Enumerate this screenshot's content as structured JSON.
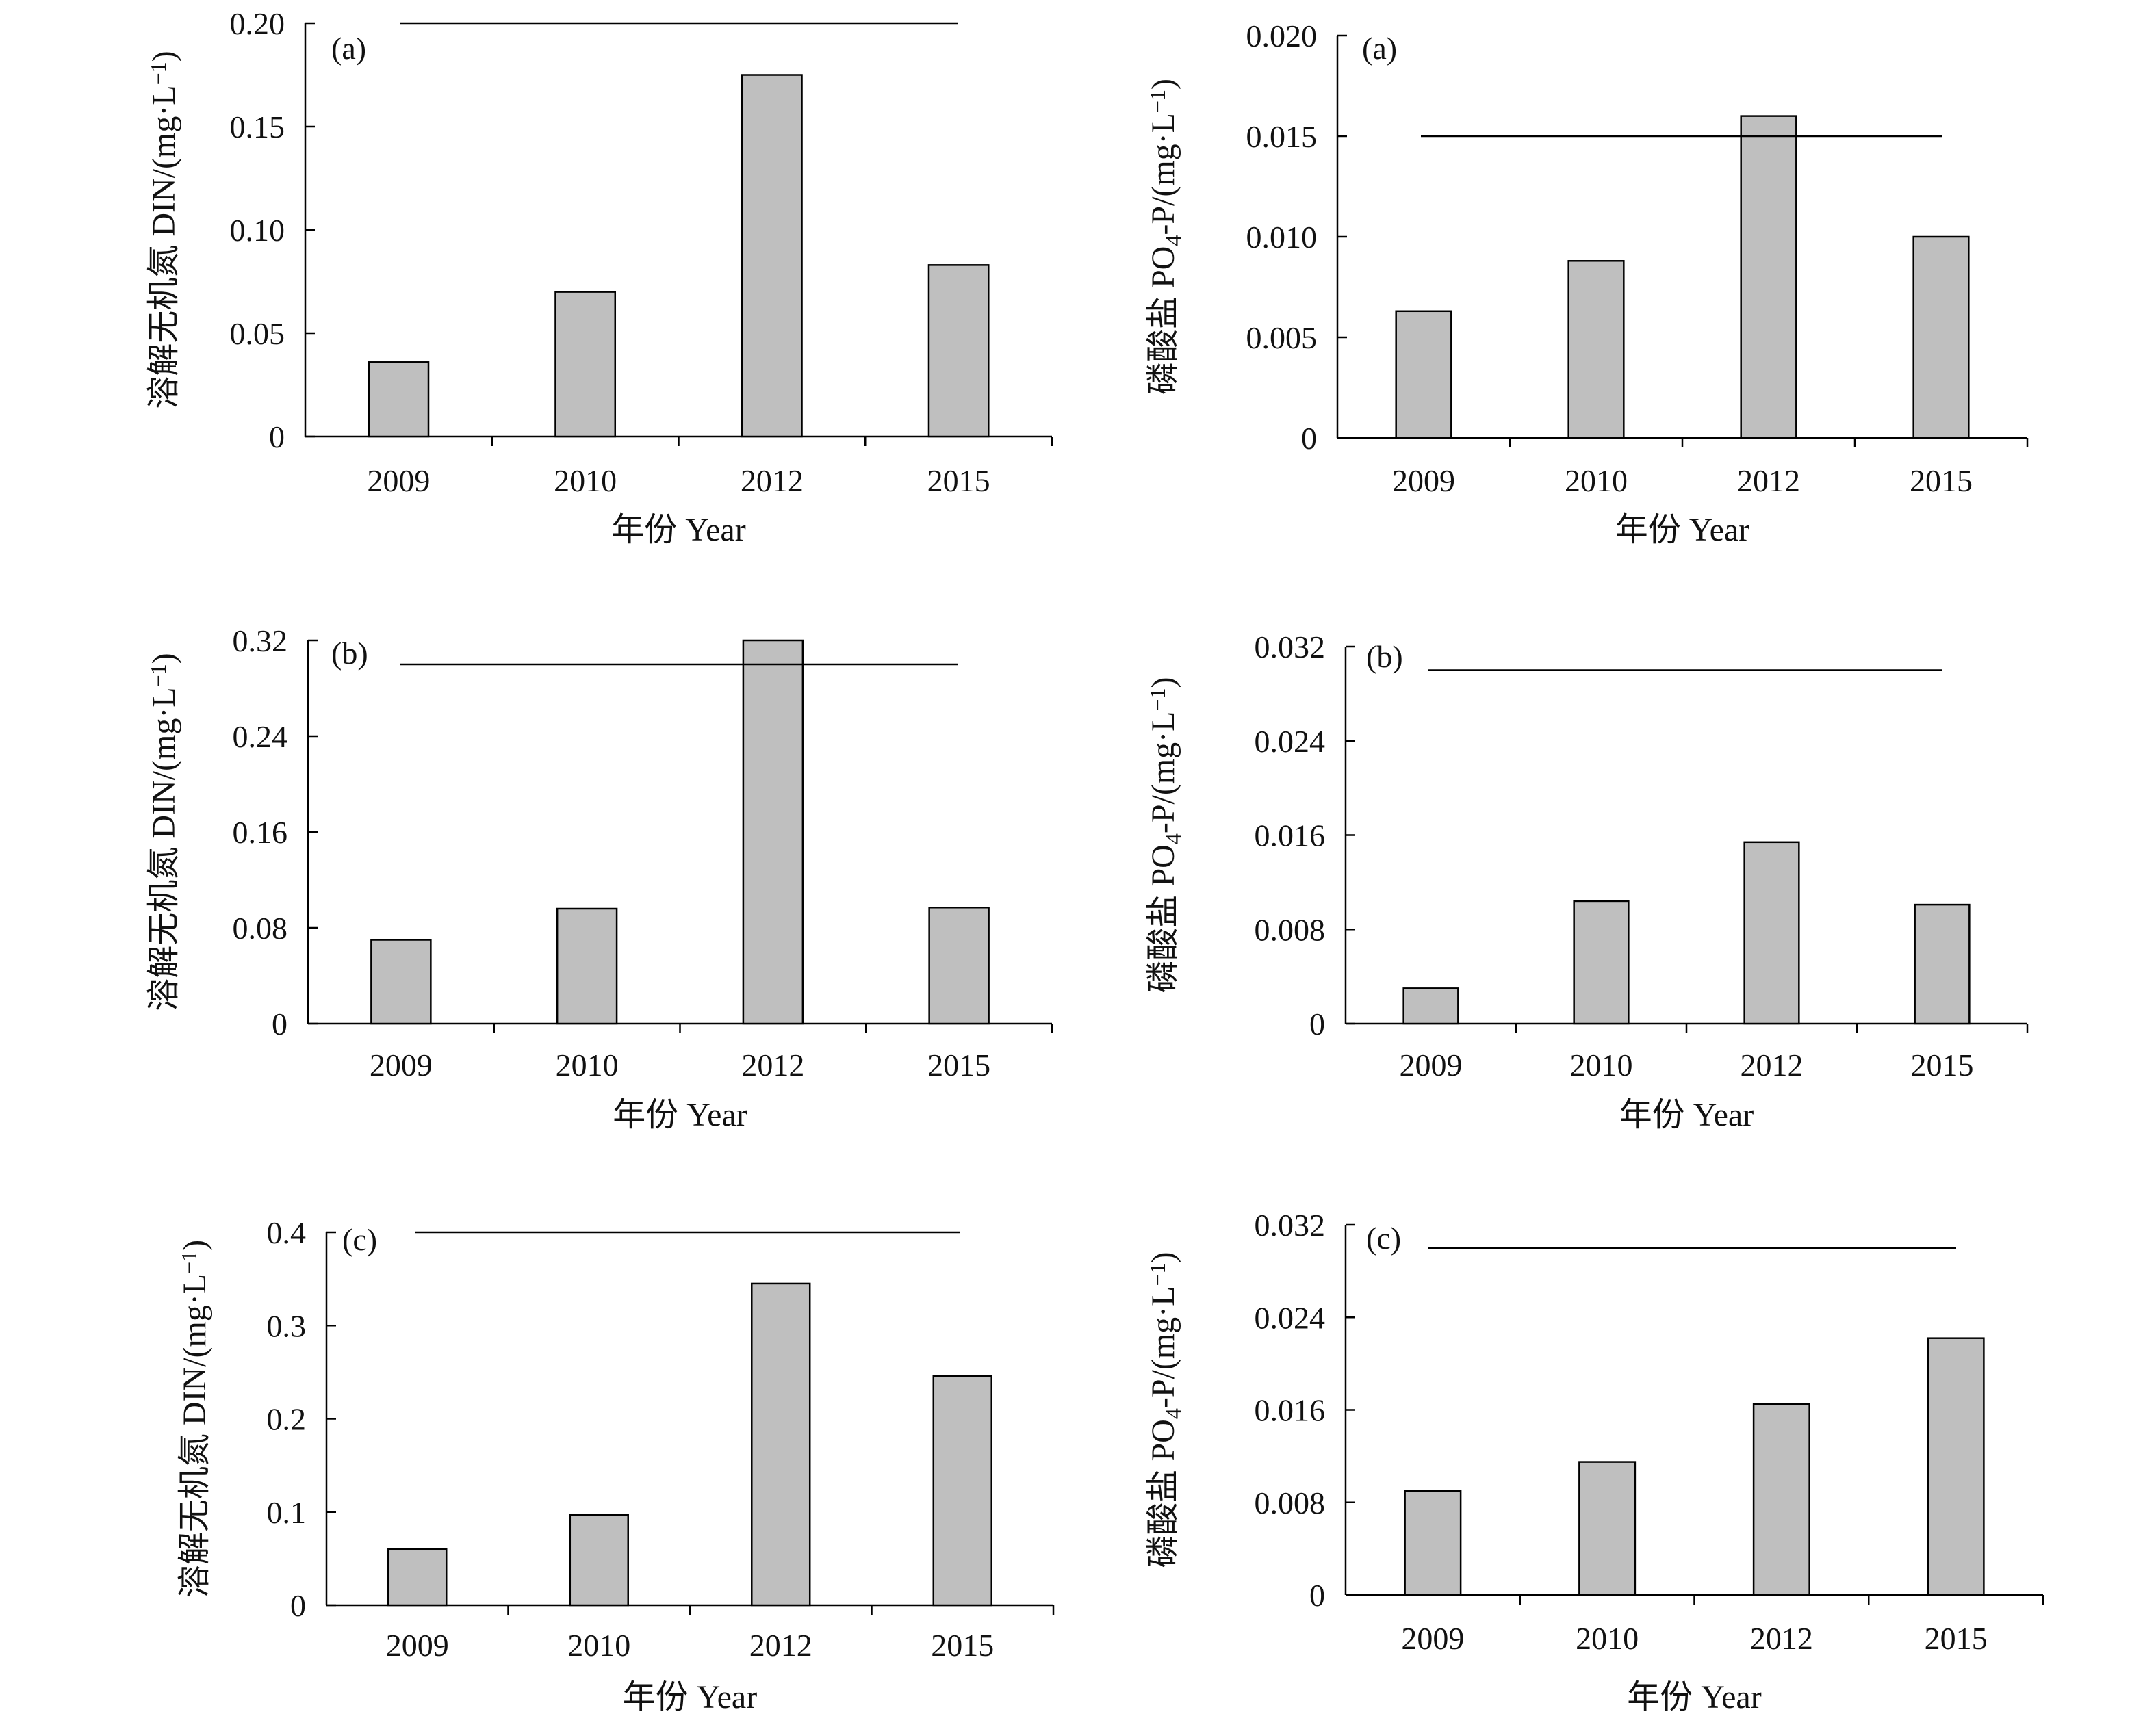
{
  "figure": {
    "xlabel": "年份 Year",
    "categories": [
      "2009",
      "2010",
      "2012",
      "2015"
    ]
  },
  "chart_data": [
    {
      "id": "din-a",
      "type": "bar",
      "panel_label": "(a)",
      "ylabel_main": "溶解无机氮 DIN/(mg·L",
      "ylabel_sup": "−1",
      "ylabel_end": ")",
      "categories": [
        "2009",
        "2010",
        "2012",
        "2015"
      ],
      "values": [
        0.036,
        0.07,
        0.175,
        0.083
      ],
      "ylim": [
        0,
        0.2
      ],
      "yticks": [
        "0",
        "0.05",
        "0.10",
        "0.15",
        "0.20"
      ],
      "reference_value": 0.2
    },
    {
      "id": "po4-a",
      "type": "bar",
      "panel_label": "(a)",
      "ylabel_main": "磷酸盐 PO",
      "ylabel_sub": "4",
      "ylabel_mid": "-P/(mg·L",
      "ylabel_sup": "−1",
      "ylabel_end": ")",
      "categories": [
        "2009",
        "2010",
        "2012",
        "2015"
      ],
      "values": [
        0.0063,
        0.0088,
        0.016,
        0.01
      ],
      "ylim": [
        0,
        0.02
      ],
      "yticks": [
        "0",
        "0.005",
        "0.010",
        "0.015",
        "0.020"
      ],
      "reference_value": 0.015
    },
    {
      "id": "din-b",
      "type": "bar",
      "panel_label": "(b)",
      "ylabel_main": "溶解无机氮 DIN/(mg·L",
      "ylabel_sup": "−1",
      "ylabel_end": ")",
      "categories": [
        "2009",
        "2010",
        "2012",
        "2015"
      ],
      "values": [
        0.07,
        0.096,
        0.32,
        0.097
      ],
      "ylim": [
        0,
        0.32
      ],
      "yticks": [
        "0",
        "0.08",
        "0.16",
        "0.24",
        "0.32"
      ],
      "reference_value": 0.3
    },
    {
      "id": "po4-b",
      "type": "bar",
      "panel_label": "(b)",
      "ylabel_main": "磷酸盐 PO",
      "ylabel_sub": "4",
      "ylabel_mid": "-P/(mg·L",
      "ylabel_sup": "−1",
      "ylabel_end": ")",
      "categories": [
        "2009",
        "2010",
        "2012",
        "2015"
      ],
      "values": [
        0.003,
        0.0104,
        0.0154,
        0.0101
      ],
      "ylim": [
        0,
        0.032
      ],
      "yticks": [
        "0",
        "0.008",
        "0.016",
        "0.024",
        "0.032"
      ],
      "reference_value": 0.03
    },
    {
      "id": "din-c",
      "type": "bar",
      "panel_label": "(c)",
      "ylabel_main": "溶解无机氮 DIN/(mg·L",
      "ylabel_sup": "−1",
      "ylabel_end": ")",
      "categories": [
        "2009",
        "2010",
        "2012",
        "2015"
      ],
      "values": [
        0.06,
        0.097,
        0.345,
        0.246
      ],
      "ylim": [
        0,
        0.4
      ],
      "yticks": [
        "0",
        "0.1",
        "0.2",
        "0.3",
        "0.4"
      ],
      "reference_value": 0.4
    },
    {
      "id": "po4-c",
      "type": "bar",
      "panel_label": "(c)",
      "ylabel_main": "磷酸盐 PO",
      "ylabel_sub": "4",
      "ylabel_mid": "-P/(mg·L",
      "ylabel_sup": "−1",
      "ylabel_end": ")",
      "categories": [
        "2009",
        "2010",
        "2012",
        "2015"
      ],
      "values": [
        0.009,
        0.0115,
        0.0165,
        0.0222
      ],
      "ylim": [
        0,
        0.032
      ],
      "yticks": [
        "0",
        "0.008",
        "0.016",
        "0.024",
        "0.032"
      ],
      "reference_value": 0.03
    }
  ]
}
